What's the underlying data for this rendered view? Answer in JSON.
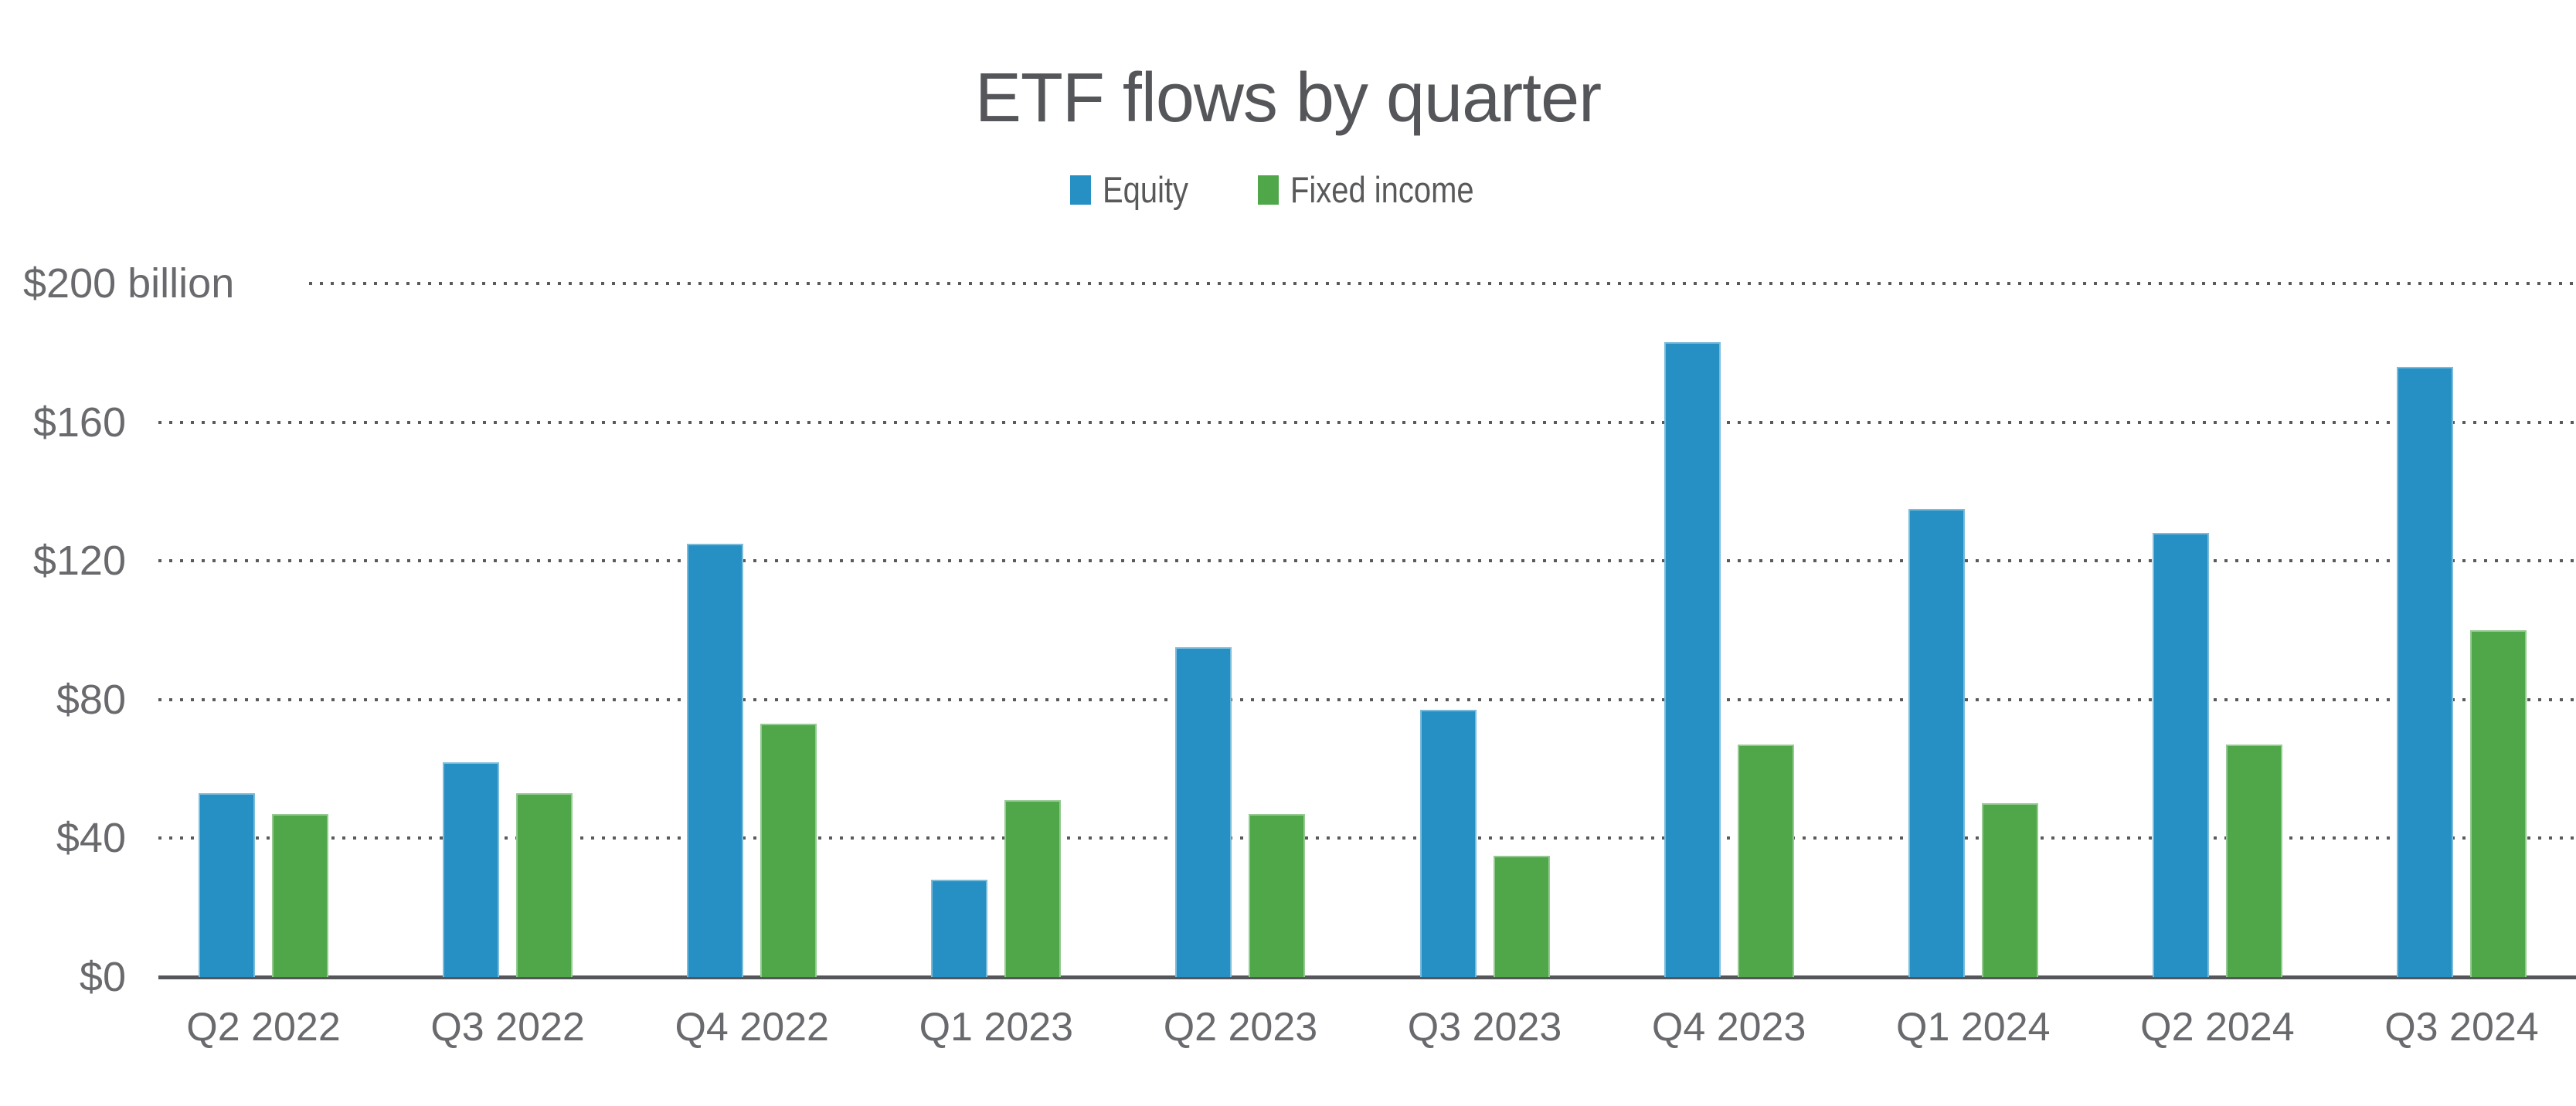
{
  "title": "ETF flows by quarter",
  "legend": {
    "items": [
      {
        "label": "Equity",
        "color": "#268FC4"
      },
      {
        "label": "Fixed income",
        "color": "#4FA74A"
      }
    ]
  },
  "y_axis": {
    "ticks": [
      "$200",
      "$160",
      "$120",
      "$80",
      "$40",
      "$0"
    ],
    "unit_suffix": " billion"
  },
  "chart_data": {
    "type": "bar",
    "title": "ETF flows by quarter",
    "categories": [
      "Q2 2022",
      "Q3 2022",
      "Q4 2022",
      "Q1 2023",
      "Q2 2023",
      "Q3 2023",
      "Q4 2023",
      "Q1 2024",
      "Q2 2024",
      "Q3 2024"
    ],
    "series": [
      {
        "name": "Equity",
        "color": "#268FC4",
        "values": [
          53,
          62,
          125,
          28,
          95,
          77,
          183,
          135,
          128,
          176
        ]
      },
      {
        "name": "Fixed income",
        "color": "#4FA74A",
        "values": [
          47,
          53,
          73,
          51,
          47,
          35,
          67,
          50,
          67,
          100
        ]
      }
    ],
    "xlabel": "",
    "ylabel": "$ billion",
    "ylim": [
      0,
      200
    ],
    "ytick_step": 40,
    "grid": "dotted-horizontal",
    "legend_position": "top"
  },
  "colors": {
    "title_text": "#55565A",
    "axis_text": "#696A6D",
    "gridline": "#595A5C",
    "axis_line": "#55565A",
    "background": "#FFFFFF"
  }
}
